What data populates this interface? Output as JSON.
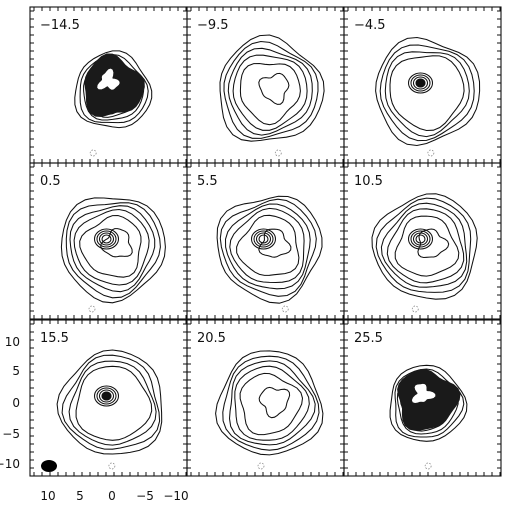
{
  "grid": {
    "rows": 3,
    "cols": 3
  },
  "panels": [
    {
      "label": "−14.5",
      "style": "blob"
    },
    {
      "label": "−9.5",
      "style": "ring"
    },
    {
      "label": "−4.5",
      "style": "core"
    },
    {
      "label": "0.5",
      "style": "ring-core"
    },
    {
      "label": "5.5",
      "style": "ring-core"
    },
    {
      "label": "10.5",
      "style": "ring-core"
    },
    {
      "label": "15.5",
      "style": "core"
    },
    {
      "label": "20.5",
      "style": "ring"
    },
    {
      "label": "25.5",
      "style": "blob-small"
    }
  ],
  "axes": {
    "y_ticks": [
      "10",
      "5",
      "0",
      "−5",
      "−10"
    ],
    "x_ticks": [
      "10",
      "5",
      "0",
      "−5",
      "−10"
    ]
  },
  "beam": {
    "shape": "ellipse",
    "color": "#000000"
  }
}
